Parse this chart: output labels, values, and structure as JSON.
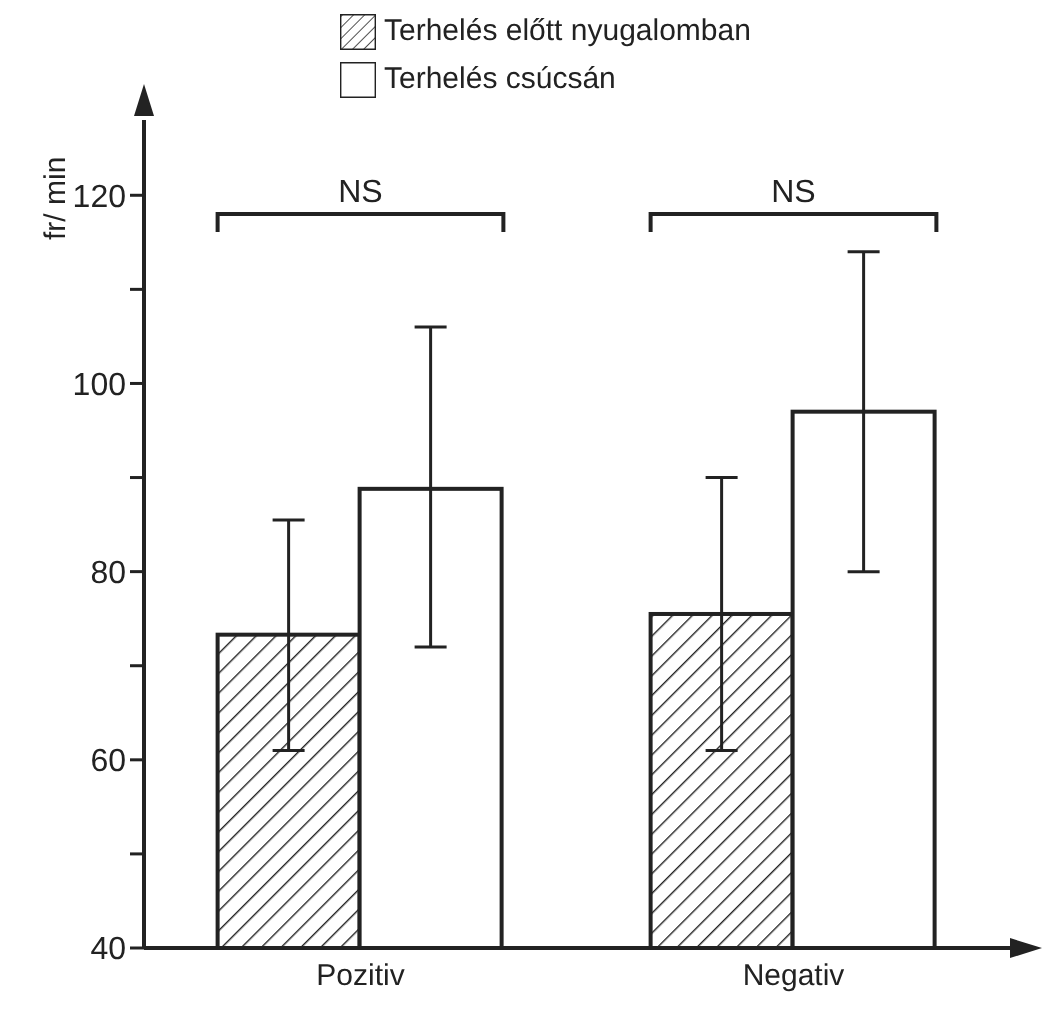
{
  "chart_data": {
    "type": "bar",
    "ylabel": "fr/ min",
    "categories": [
      "Pozitiv",
      "Negativ"
    ],
    "series": [
      {
        "name": "Terhelés előtt nyugalomban",
        "color": "#222222",
        "values": [
          73.3,
          75.5
        ],
        "errors": [
          [
            61,
            85.5
          ],
          [
            61,
            90
          ]
        ]
      },
      {
        "name": "Terhelés csúcsán",
        "color": "#ffffff",
        "values": [
          88.8,
          97
        ],
        "errors": [
          [
            72,
            106
          ],
          [
            80,
            114
          ]
        ]
      }
    ],
    "ylim": [
      40,
      128
    ],
    "yticks": [
      40,
      {
        "value": 50,
        "label": null
      },
      60,
      {
        "value": 70,
        "label": null
      },
      80,
      {
        "value": 90,
        "label": null
      },
      100,
      {
        "value": 110,
        "label": null
      },
      120
    ],
    "annotations": [
      "NS",
      "NS"
    ],
    "legend": "top",
    "grid": false
  }
}
